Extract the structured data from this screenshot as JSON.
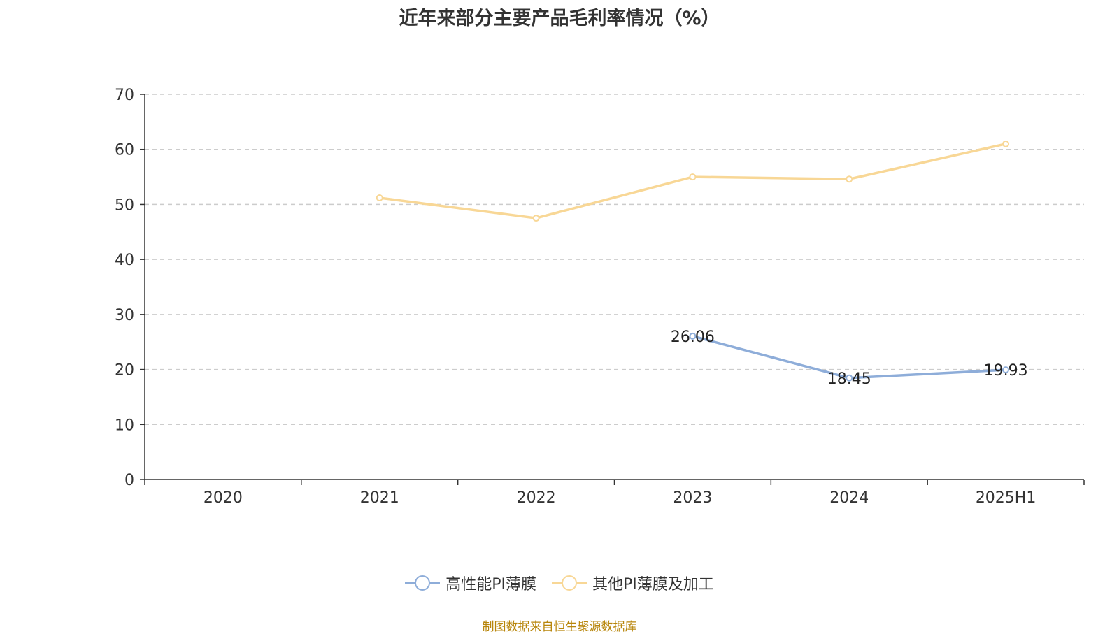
{
  "chart_data": {
    "type": "line",
    "title": "近年来部分主要产品毛利率情况（%）",
    "categories": [
      "2020",
      "2021",
      "2022",
      "2023",
      "2024",
      "2025H1"
    ],
    "ylim": [
      0,
      70
    ],
    "yticks": [
      0,
      10,
      20,
      30,
      40,
      50,
      60,
      70
    ],
    "grid": true,
    "legend_position": "bottom",
    "series": [
      {
        "name": "高性能PI薄膜",
        "color": "#8eadd9",
        "values": [
          null,
          null,
          null,
          26.06,
          18.45,
          19.93
        ],
        "labels": [
          "",
          "",
          "",
          "26.06",
          "18.45",
          "19.93"
        ]
      },
      {
        "name": "其他PI薄膜及加工",
        "color": "#f8d796",
        "values": [
          null,
          51.2,
          47.5,
          55.0,
          54.6,
          61.0
        ],
        "labels": [
          "",
          "",
          "",
          "",
          "",
          ""
        ]
      }
    ]
  },
  "source_note": "制图数据来自恒生聚源数据库"
}
